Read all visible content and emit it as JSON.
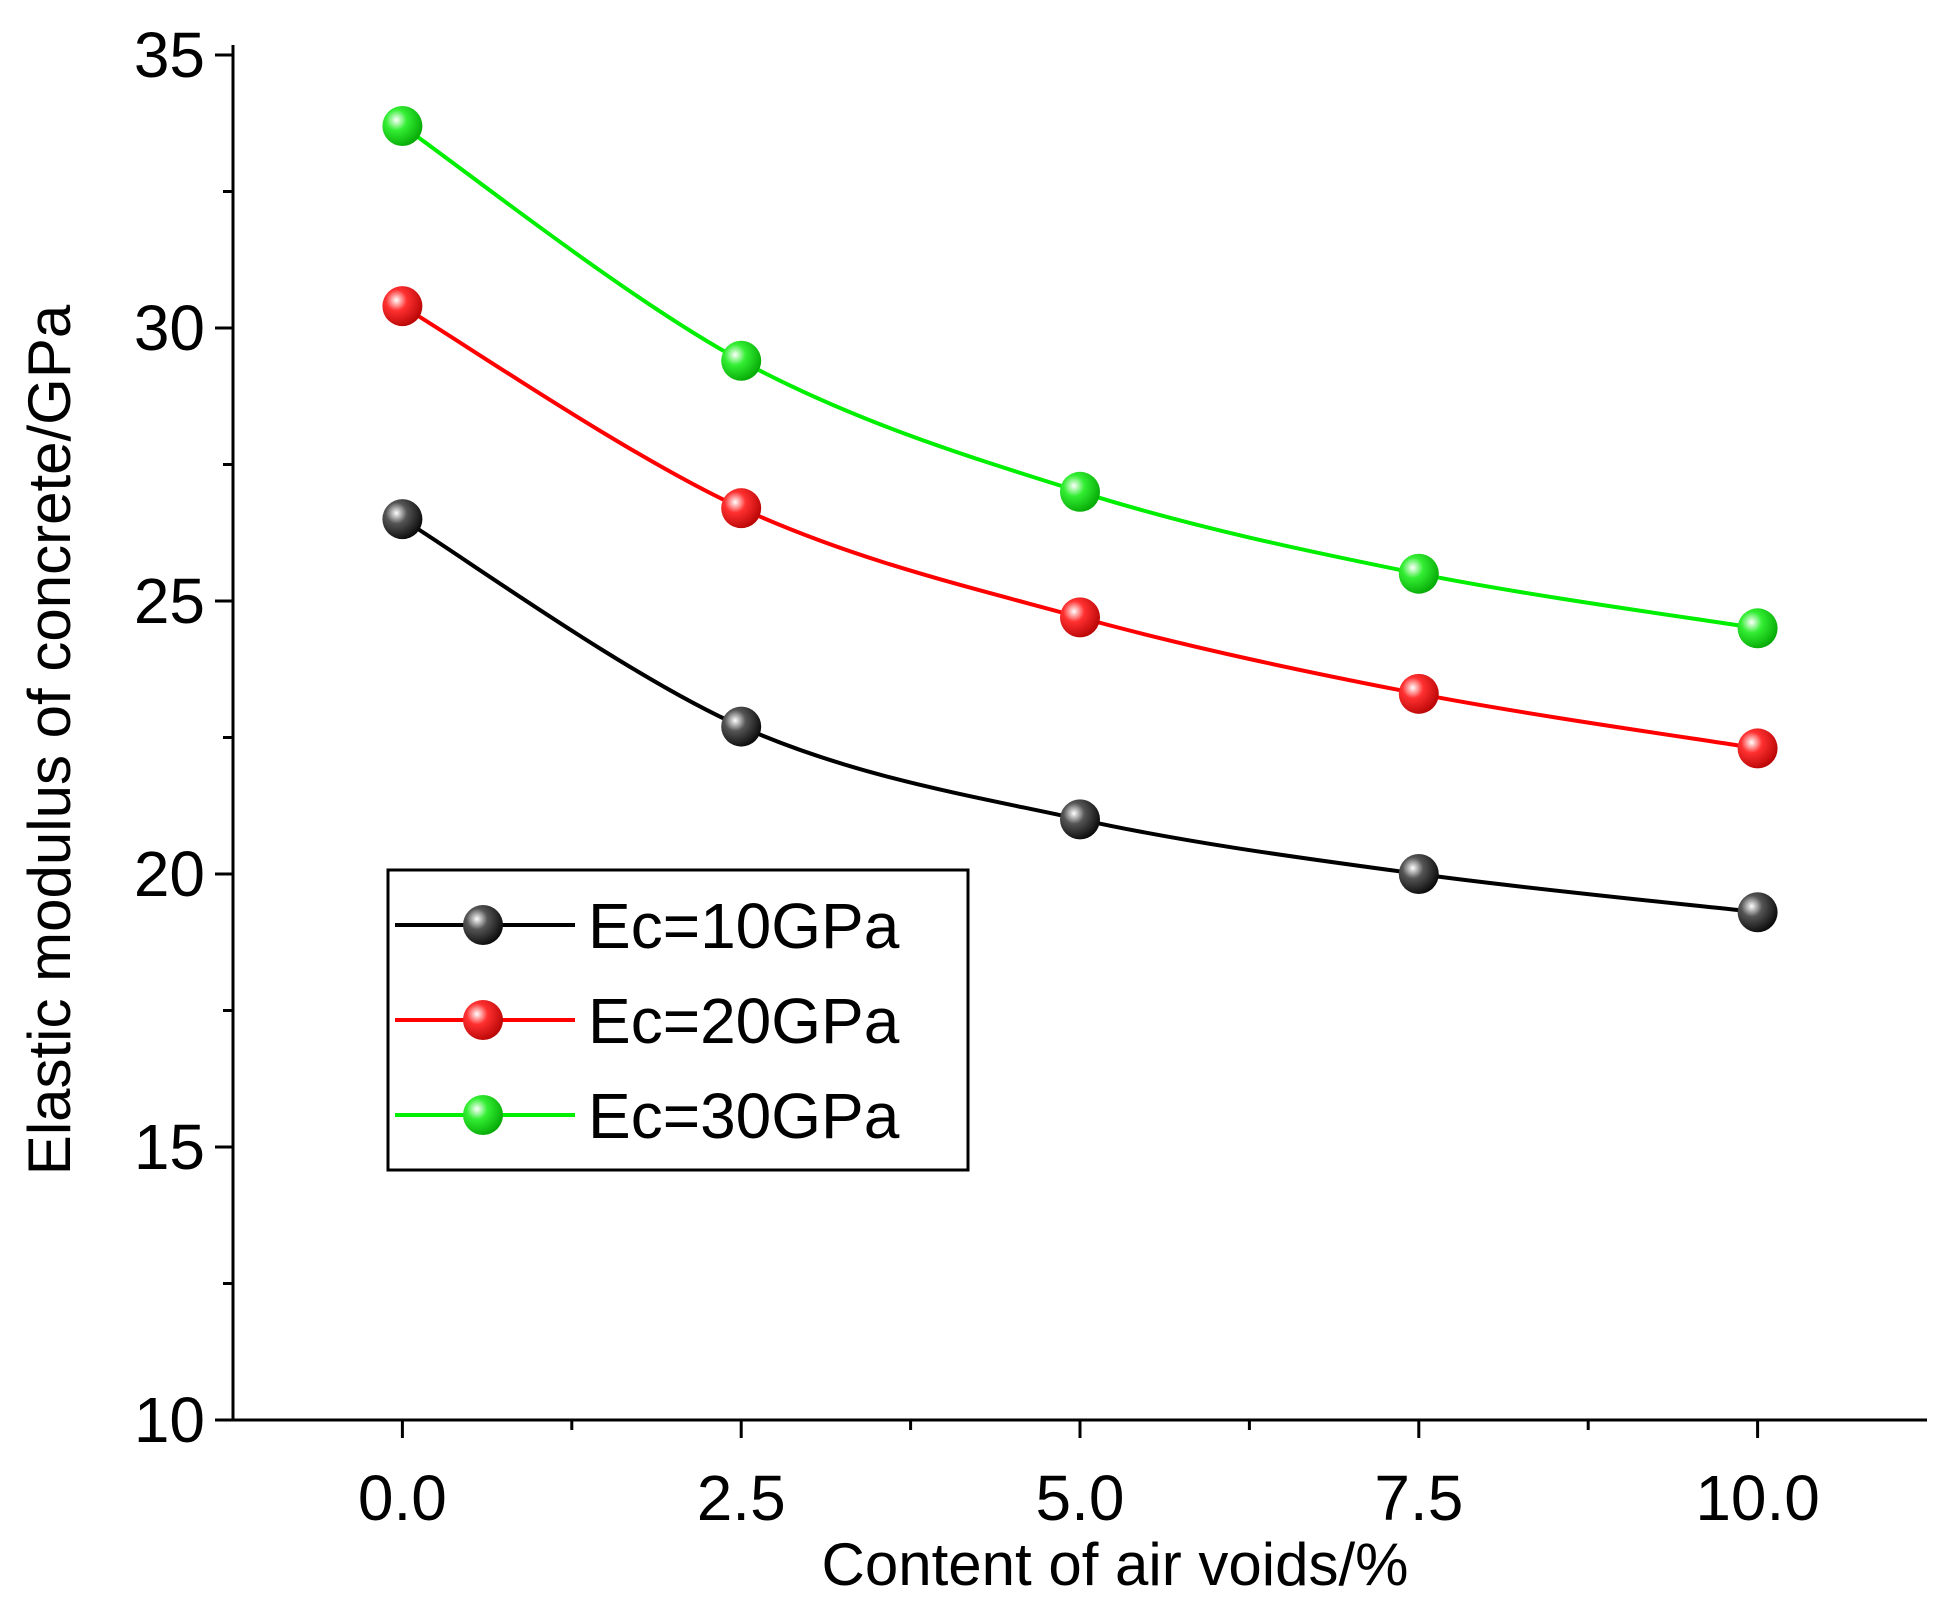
{
  "chart_data": {
    "type": "line",
    "title": "",
    "xlabel": "Content of air voids/%",
    "ylabel": "Elastic modulus of concrete/GPa",
    "xlim": [
      -1.25,
      11.25
    ],
    "ylim": [
      10,
      35
    ],
    "x": [
      0.0,
      2.5,
      5.0,
      7.5,
      10.0
    ],
    "x_ticks": [
      0,
      2.5,
      5,
      7.5,
      10
    ],
    "x_tick_labels": [
      "0.0",
      "2.5",
      "5.0",
      "7.5",
      "10.0"
    ],
    "x_minor_ticks": [
      1.25,
      3.75,
      6.25,
      8.75
    ],
    "y_ticks": [
      10,
      15,
      20,
      25,
      30,
      35
    ],
    "y_tick_labels": [
      "10",
      "15",
      "20",
      "25",
      "30",
      "35"
    ],
    "y_minor_ticks": [
      12.5,
      17.5,
      22.5,
      27.5,
      32.5
    ],
    "grid": false,
    "legend_position": "center-left",
    "series": [
      {
        "name": "Ec=10GPa",
        "color": "#000000",
        "values": [
          26.5,
          22.7,
          21.0,
          20.0,
          19.3
        ]
      },
      {
        "name": "Ec=20GPa",
        "color": "#ff0000",
        "values": [
          30.4,
          26.7,
          24.7,
          23.3,
          22.3
        ]
      },
      {
        "name": "Ec=30GPa",
        "color": "#00ee00",
        "values": [
          33.7,
          29.4,
          27.0,
          25.5,
          24.5
        ]
      }
    ]
  }
}
